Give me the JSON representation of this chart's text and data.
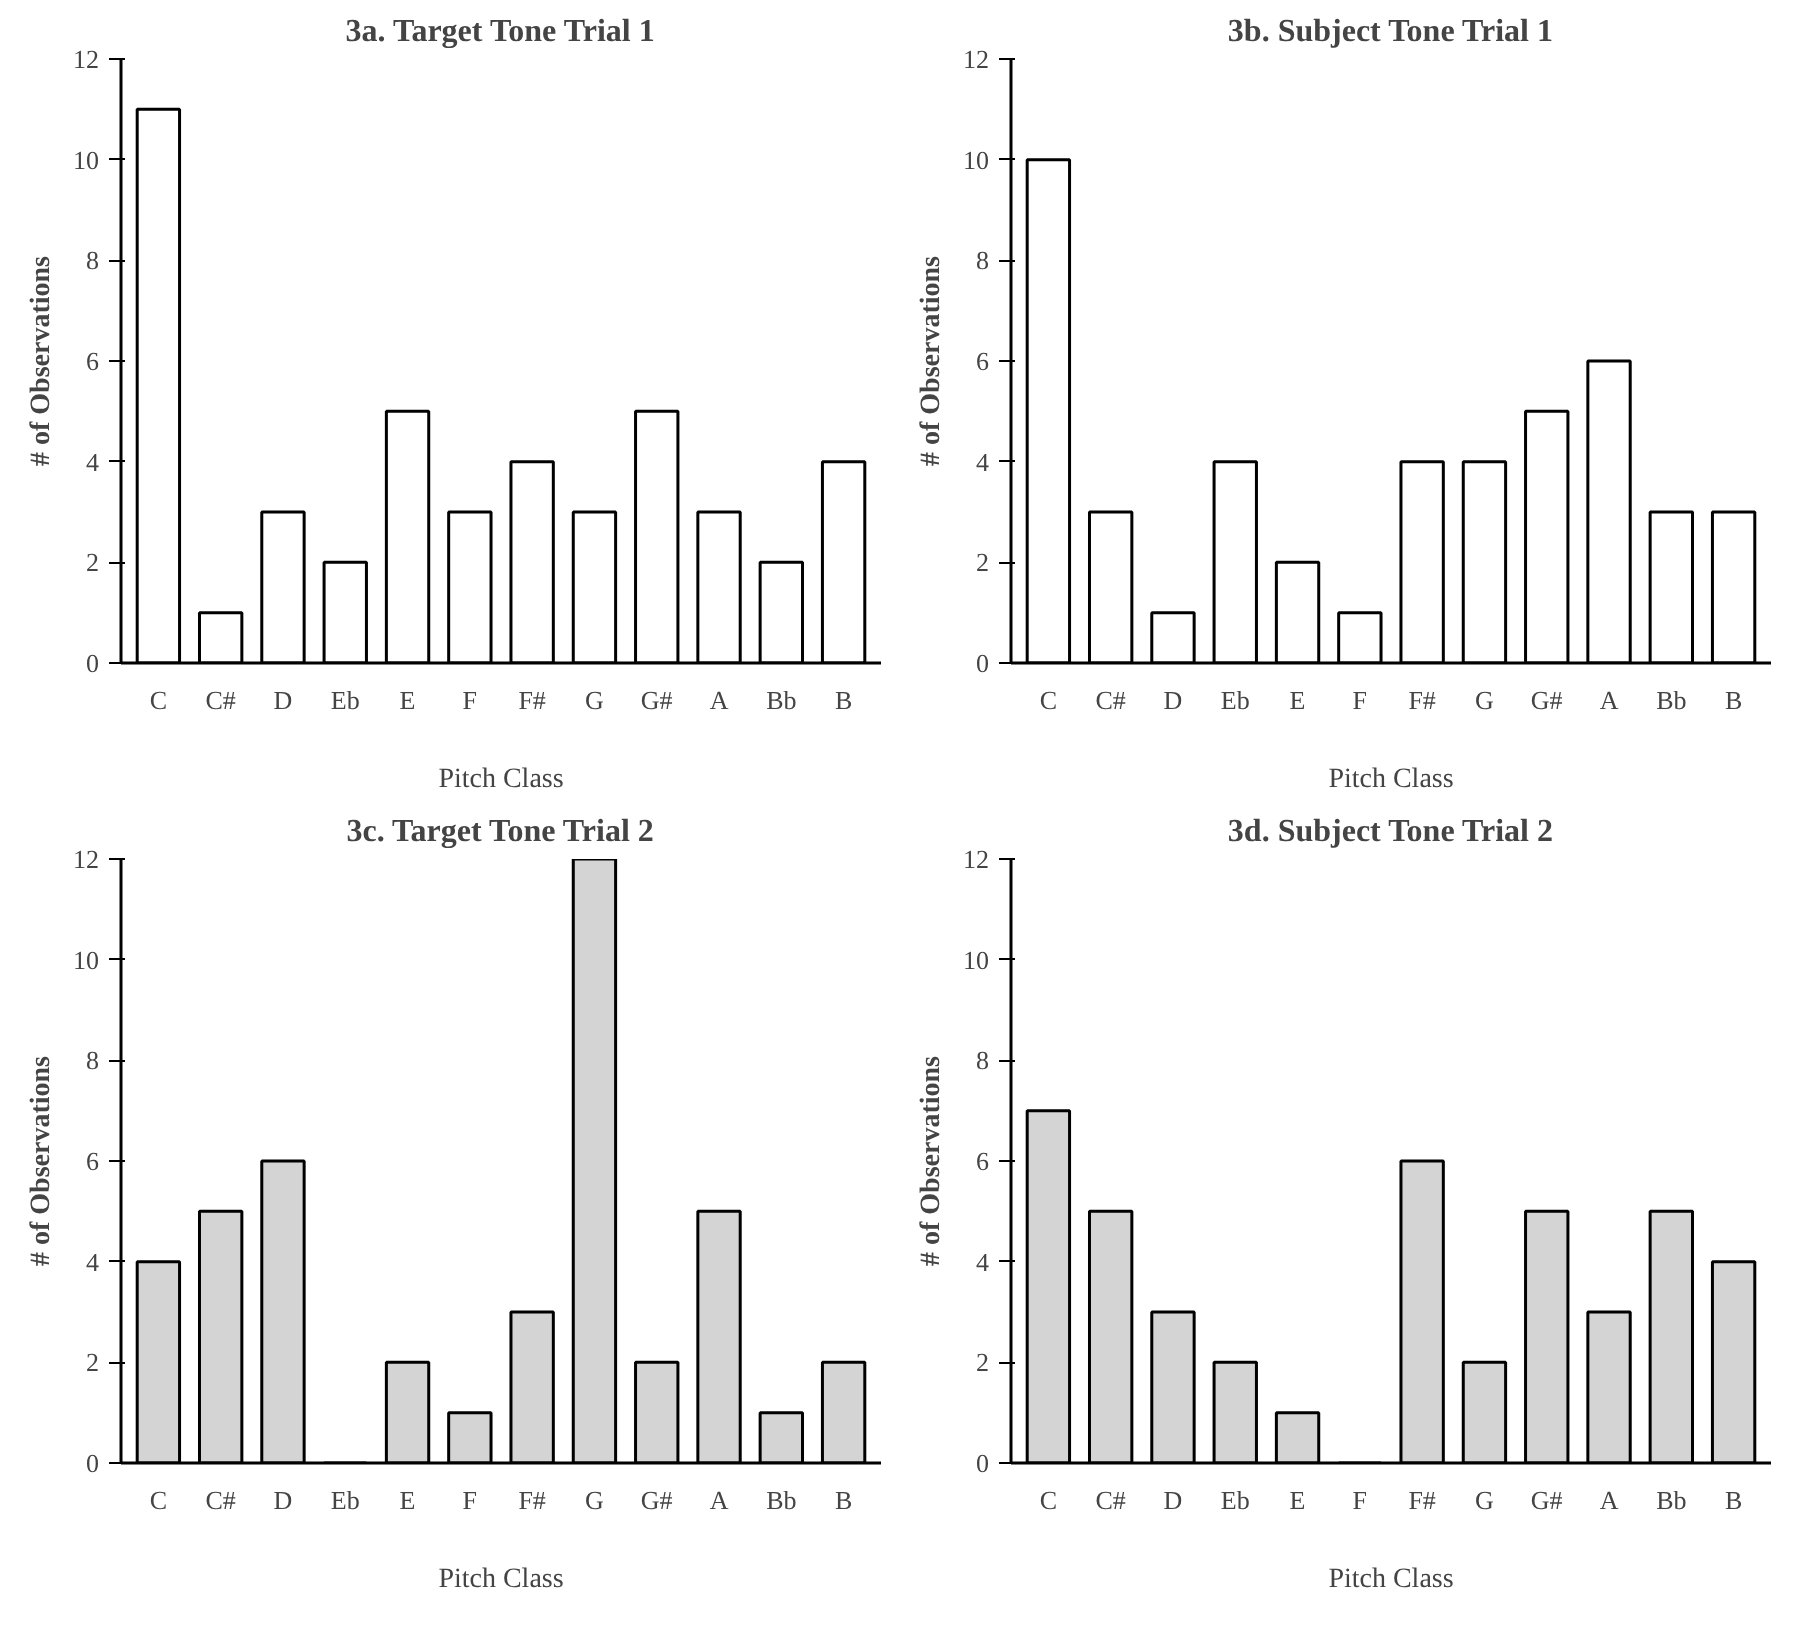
{
  "chart_data": [
    {
      "type": "bar",
      "title": "3a. Target Tone Trial 1",
      "xlabel": "Pitch Class",
      "ylabel": "# of Observations",
      "categories": [
        "C",
        "C#",
        "D",
        "Eb",
        "E",
        "F",
        "F#",
        "G",
        "G#",
        "A",
        "Bb",
        "B"
      ],
      "series": [
        {
          "color": "#ffffff",
          "values": [
            11,
            1,
            3,
            2,
            5,
            3,
            4,
            3,
            5,
            3,
            2,
            4
          ]
        }
      ],
      "ylim": [
        0,
        12
      ],
      "yticks": [
        0,
        2,
        4,
        6,
        8,
        10,
        12
      ]
    },
    {
      "type": "bar",
      "title": "3b. Subject Tone Trial 1",
      "xlabel": "Pitch Class",
      "ylabel": "# of Observations",
      "categories": [
        "C",
        "C#",
        "D",
        "Eb",
        "E",
        "F",
        "F#",
        "G",
        "G#",
        "A",
        "Bb",
        "B"
      ],
      "series": [
        {
          "color": "#ffffff",
          "values": [
            10,
            3,
            1,
            4,
            2,
            1,
            4,
            4,
            5,
            6,
            3,
            3
          ]
        }
      ],
      "ylim": [
        0,
        12
      ],
      "yticks": [
        0,
        2,
        4,
        6,
        8,
        10,
        12
      ]
    },
    {
      "type": "bar",
      "title": "3c. Target Tone Trial 2",
      "xlabel": "Pitch Class",
      "ylabel": "# of Observations",
      "categories": [
        "C",
        "C#",
        "D",
        "Eb",
        "E",
        "F",
        "F#",
        "G",
        "G#",
        "A",
        "Bb",
        "B"
      ],
      "series": [
        {
          "color": "#d4d4d4",
          "values": [
            4,
            5,
            6,
            0,
            2,
            1,
            3,
            12,
            2,
            5,
            1,
            2
          ]
        }
      ],
      "ylim": [
        0,
        12
      ],
      "yticks": [
        0,
        2,
        4,
        6,
        8,
        10,
        12
      ]
    },
    {
      "type": "bar",
      "title": "3d. Subject Tone Trial 2",
      "xlabel": "Pitch Class",
      "ylabel": "# of Observations",
      "categories": [
        "C",
        "C#",
        "D",
        "Eb",
        "E",
        "F",
        "F#",
        "G",
        "G#",
        "A",
        "Bb",
        "B"
      ],
      "series": [
        {
          "color": "#d4d4d4",
          "values": [
            7,
            5,
            3,
            2,
            1,
            0,
            6,
            2,
            5,
            3,
            5,
            4
          ]
        }
      ],
      "ylim": [
        0,
        12
      ],
      "yticks": [
        0,
        2,
        4,
        6,
        8,
        10,
        12
      ]
    }
  ]
}
